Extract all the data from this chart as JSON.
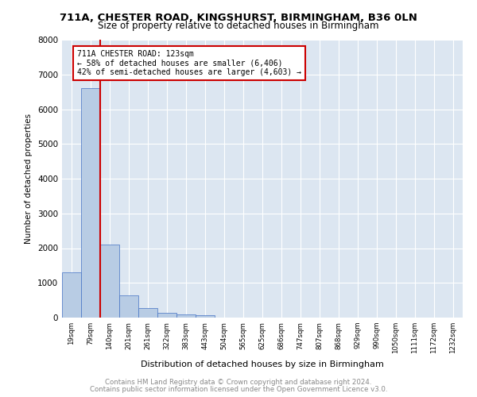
{
  "title_line1": "711A, CHESTER ROAD, KINGSHURST, BIRMINGHAM, B36 0LN",
  "title_line2": "Size of property relative to detached houses in Birmingham",
  "xlabel": "Distribution of detached houses by size in Birmingham",
  "ylabel": "Number of detached properties",
  "bin_labels": [
    "19sqm",
    "79sqm",
    "140sqm",
    "201sqm",
    "261sqm",
    "322sqm",
    "383sqm",
    "443sqm",
    "504sqm",
    "565sqm",
    "625sqm",
    "686sqm",
    "747sqm",
    "807sqm",
    "868sqm",
    "929sqm",
    "990sqm",
    "1050sqm",
    "1111sqm",
    "1172sqm",
    "1232sqm"
  ],
  "bar_values": [
    1300,
    6600,
    2100,
    650,
    280,
    130,
    90,
    70,
    0,
    0,
    0,
    0,
    0,
    0,
    0,
    0,
    0,
    0,
    0,
    0,
    0
  ],
  "bar_color": "#b8cce4",
  "bar_edge_color": "#4472c4",
  "property_line_color": "#cc0000",
  "annotation_title": "711A CHESTER ROAD: 123sqm",
  "annotation_line1": "← 58% of detached houses are smaller (6,406)",
  "annotation_line2": "42% of semi-detached houses are larger (4,603) →",
  "annotation_box_color": "#cc0000",
  "ylim": [
    0,
    8000
  ],
  "yticks": [
    0,
    1000,
    2000,
    3000,
    4000,
    5000,
    6000,
    7000,
    8000
  ],
  "plot_bg_color": "#dce6f1",
  "footer_line1": "Contains HM Land Registry data © Crown copyright and database right 2024.",
  "footer_line2": "Contains public sector information licensed under the Open Government Licence v3.0."
}
